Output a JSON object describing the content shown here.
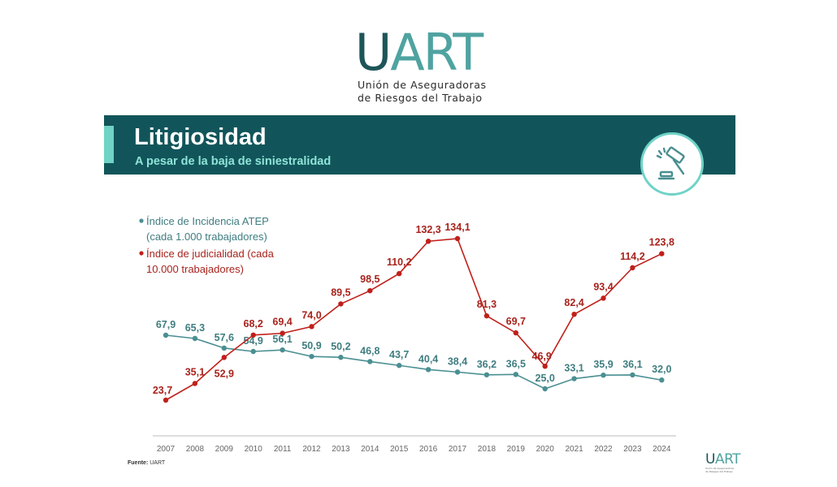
{
  "logo": {
    "word_u": "U",
    "word_art": "ART",
    "line1": "Unión de Aseguradoras",
    "line2": "de Riesgos del Trabajo"
  },
  "header": {
    "title": "Litigiosidad",
    "subtitle": "A pesar de la baja de siniestralidad",
    "icon": "gavel-icon"
  },
  "colors": {
    "banner": "#11555a",
    "accent": "#6fd3c6",
    "atep": "#4a8f92",
    "judicial": "#c0201a",
    "axis": "#666666"
  },
  "chart_data": {
    "type": "line",
    "x": [
      "2007",
      "2008",
      "2009",
      "2010",
      "2011",
      "2012",
      "2013",
      "2014",
      "2015",
      "2016",
      "2017",
      "2018",
      "2019",
      "2020",
      "2021",
      "2022",
      "2023",
      "2024"
    ],
    "series": [
      {
        "name": "Índice de Incidencia ATEP (cada 1.000 trabajadores)",
        "color": "#4a8f92",
        "values": [
          67.9,
          65.3,
          57.6,
          54.9,
          56.1,
          50.9,
          50.2,
          46.8,
          43.7,
          40.4,
          38.4,
          36.2,
          36.5,
          25.0,
          33.1,
          35.9,
          36.1,
          32.0
        ],
        "labels": [
          "67,9",
          "65,3",
          "57,6",
          "54,9",
          "56,1",
          "50,9",
          "50,2",
          "46,8",
          "43,7",
          "40,4",
          "38,4",
          "36,2",
          "36,5",
          "25,0",
          "33,1",
          "35,9",
          "36,1",
          "32,0"
        ]
      },
      {
        "name": "Índice de judicialidad (cada 10.000 trabajadores)",
        "color": "#c0201a",
        "values": [
          23.7,
          35.1,
          52.9,
          68.2,
          69.4,
          74.0,
          89.5,
          98.5,
          110.2,
          132.3,
          134.1,
          81.3,
          69.7,
          46.9,
          82.4,
          93.4,
          114.2,
          123.8
        ],
        "labels": [
          "23,7",
          "35,1",
          "52,9",
          "68,2",
          "69,4",
          "74,0",
          "89,5",
          "98,5",
          "110,2",
          "132,3",
          "134,1",
          "81,3",
          "69,7",
          "46,9",
          "82,4",
          "93,4",
          "114,2",
          "123,8"
        ]
      }
    ],
    "legend": [
      {
        "line1": "Índice de Incidencia ATEP",
        "line2": "(cada 1.000 trabajadores)"
      },
      {
        "line1": "Índice de judicialidad (cada",
        "line2": "10.000 trabajadores)"
      }
    ],
    "legend_position": "top-left",
    "grid": false
  },
  "footer": {
    "source_label": "Fuente:",
    "source_value": "UART",
    "logo_word_u": "U",
    "logo_word_art": "ART",
    "logo_small_line1": "Unión de Aseguradoras",
    "logo_small_line2": "de Riesgos del Trabajo"
  }
}
